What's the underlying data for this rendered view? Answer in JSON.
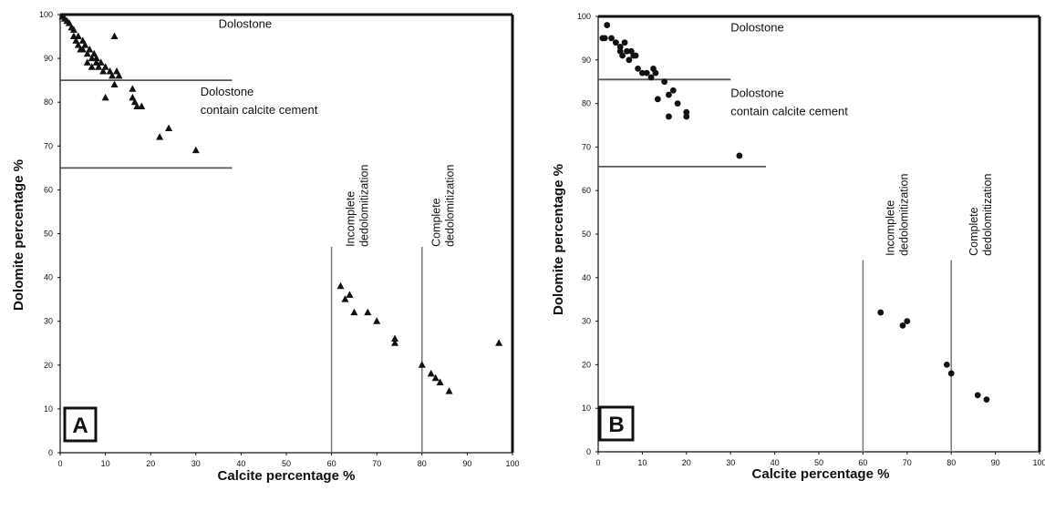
{
  "chart_data": [
    {
      "type": "scatter",
      "panel_label": "A",
      "marker": "triangle",
      "xlabel": "Calcite percentage %",
      "ylabel": "Dolomite percentage %",
      "xlim": [
        0,
        100
      ],
      "ylim": [
        0,
        100
      ],
      "xticks": [
        "0",
        "10",
        "20",
        "30",
        "40",
        "50",
        "60",
        "70",
        "80",
        "90",
        "100"
      ],
      "yticks": [
        "0",
        "10",
        "20",
        "30",
        "40",
        "50",
        "60",
        "70",
        "80",
        "90",
        "100"
      ],
      "grid": false,
      "hlines": [
        {
          "y": 85,
          "xmin": 0,
          "xmax": 38
        },
        {
          "y": 65,
          "xmin": 0,
          "xmax": 38
        }
      ],
      "vlines": [
        {
          "x": 60,
          "ymin": 0,
          "ymax": 47
        },
        {
          "x": 80,
          "ymin": 0,
          "ymax": 47
        }
      ],
      "annotations": [
        {
          "lines": [
            "Dolostone"
          ],
          "x": 35,
          "y": 97,
          "rotate": false
        },
        {
          "lines": [
            "Dolostone",
            "contain calcite cement"
          ],
          "x": 31,
          "y": 81.5,
          "rotate": false
        },
        {
          "lines": [
            "Incomplete",
            "dedolomitization"
          ],
          "x": 65,
          "y": 47,
          "rotate": true
        },
        {
          "lines": [
            "Complete",
            "dedolomitization"
          ],
          "x": 84,
          "y": 47,
          "rotate": true
        }
      ],
      "points": [
        [
          0.5,
          99.5
        ],
        [
          1,
          99
        ],
        [
          1.5,
          98.5
        ],
        [
          2,
          98
        ],
        [
          2.5,
          97
        ],
        [
          3,
          96.5
        ],
        [
          3,
          95
        ],
        [
          3.5,
          94
        ],
        [
          4,
          95
        ],
        [
          4,
          93
        ],
        [
          4.5,
          92
        ],
        [
          5,
          94
        ],
        [
          5,
          92
        ],
        [
          5.5,
          93
        ],
        [
          6,
          91
        ],
        [
          6,
          89
        ],
        [
          6.5,
          92
        ],
        [
          7,
          90
        ],
        [
          7,
          88
        ],
        [
          7.5,
          91
        ],
        [
          8,
          90
        ],
        [
          8,
          89
        ],
        [
          8.5,
          88
        ],
        [
          9,
          89
        ],
        [
          9.5,
          87
        ],
        [
          10,
          88
        ],
        [
          10,
          81
        ],
        [
          11,
          87
        ],
        [
          11.5,
          86
        ],
        [
          12,
          95
        ],
        [
          12,
          84
        ],
        [
          12.5,
          87
        ],
        [
          13,
          86
        ],
        [
          16,
          83
        ],
        [
          16,
          81
        ],
        [
          16.5,
          80
        ],
        [
          17,
          79
        ],
        [
          18,
          79
        ],
        [
          22,
          72
        ],
        [
          24,
          74
        ],
        [
          30,
          69
        ],
        [
          62,
          38
        ],
        [
          63,
          35
        ],
        [
          64,
          36
        ],
        [
          65,
          32
        ],
        [
          68,
          32
        ],
        [
          70,
          30
        ],
        [
          74,
          26
        ],
        [
          74,
          25
        ],
        [
          80,
          20
        ],
        [
          82,
          18
        ],
        [
          83,
          17
        ],
        [
          84,
          16
        ],
        [
          86,
          14
        ],
        [
          97,
          25
        ]
      ]
    },
    {
      "type": "scatter",
      "panel_label": "B",
      "marker": "circle",
      "xlabel": "Calcite percentage %",
      "ylabel": "Dolomite percentage %",
      "xlim": [
        0,
        100
      ],
      "ylim": [
        0,
        100
      ],
      "xticks": [
        "0",
        "10",
        "20",
        "30",
        "40",
        "50",
        "60",
        "70",
        "80",
        "90",
        "100"
      ],
      "yticks": [
        "0",
        "10",
        "20",
        "30",
        "40",
        "50",
        "60",
        "70",
        "80",
        "90",
        "100"
      ],
      "grid": false,
      "hlines": [
        {
          "y": 85.5,
          "xmin": 0,
          "xmax": 30
        },
        {
          "y": 65.5,
          "xmin": 0,
          "xmax": 38
        }
      ],
      "vlines": [
        {
          "x": 60,
          "ymin": 0,
          "ymax": 44
        },
        {
          "x": 80,
          "ymin": 0,
          "ymax": 44
        }
      ],
      "annotations": [
        {
          "lines": [
            "Dolostone"
          ],
          "x": 30,
          "y": 96.5,
          "rotate": false
        },
        {
          "lines": [
            "Dolostone",
            "contain calcite cement"
          ],
          "x": 30,
          "y": 81.5,
          "rotate": false
        },
        {
          "lines": [
            "Incomplete",
            "dedolomitization"
          ],
          "x": 67,
          "y": 45,
          "rotate": true
        },
        {
          "lines": [
            "Complete",
            "dedolomitization"
          ],
          "x": 86,
          "y": 45,
          "rotate": true
        }
      ],
      "points": [
        [
          1,
          95
        ],
        [
          1.5,
          95
        ],
        [
          2,
          98
        ],
        [
          3,
          95
        ],
        [
          4,
          94
        ],
        [
          5,
          93
        ],
        [
          5,
          92
        ],
        [
          5.5,
          91
        ],
        [
          6,
          94
        ],
        [
          6.5,
          92
        ],
        [
          7,
          90
        ],
        [
          7.5,
          92
        ],
        [
          8,
          91
        ],
        [
          8.5,
          91
        ],
        [
          9,
          88
        ],
        [
          10,
          87
        ],
        [
          11,
          87
        ],
        [
          12,
          86
        ],
        [
          12.5,
          88
        ],
        [
          13,
          87
        ],
        [
          13.5,
          81
        ],
        [
          15,
          85
        ],
        [
          16,
          82
        ],
        [
          16,
          77
        ],
        [
          17,
          83
        ],
        [
          18,
          80
        ],
        [
          20,
          78
        ],
        [
          20,
          77
        ],
        [
          32,
          68
        ],
        [
          64,
          32
        ],
        [
          69,
          29
        ],
        [
          70,
          30
        ],
        [
          79,
          20
        ],
        [
          80,
          18
        ],
        [
          86,
          13
        ],
        [
          88,
          12
        ]
      ]
    }
  ]
}
